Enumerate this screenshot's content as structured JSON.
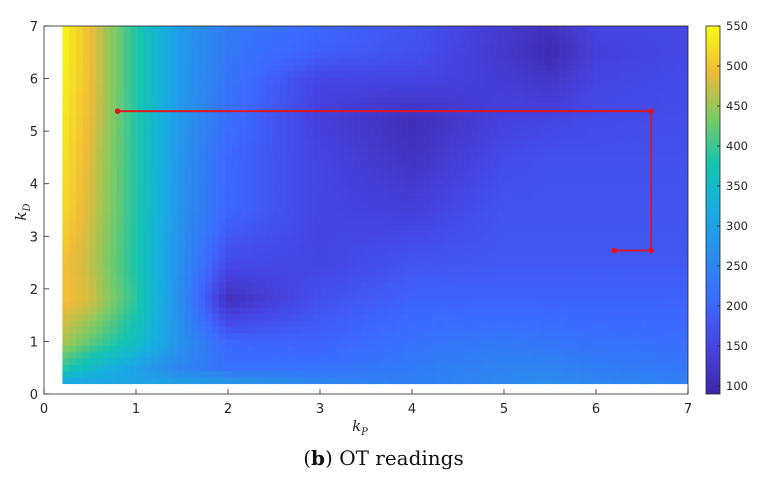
{
  "caption": {
    "label": "b",
    "text": ") OT readings"
  },
  "chart_data": {
    "type": "heatmap",
    "title": "",
    "xlabel": {
      "main": "k",
      "sub": "P"
    },
    "ylabel": {
      "main": "k",
      "sub": "D"
    },
    "xlim": [
      0,
      7
    ],
    "ylim": [
      0,
      7
    ],
    "x_ticks": [
      0,
      1,
      2,
      3,
      4,
      5,
      6,
      7
    ],
    "y_ticks": [
      0,
      1,
      2,
      3,
      4,
      5,
      6,
      7
    ],
    "grid": false,
    "colormap": "parula",
    "colorbar": {
      "range": [
        90,
        550
      ],
      "ticks": [
        100,
        150,
        200,
        250,
        300,
        350,
        400,
        450,
        500,
        550
      ]
    },
    "field": {
      "x": [
        0.2,
        0.5,
        1.0,
        1.5,
        2.0,
        3.0,
        4.0,
        5.0,
        5.5,
        6.0,
        7.0
      ],
      "y": [
        0.2,
        0.5,
        1.0,
        1.8,
        2.5,
        3.5,
        4.5,
        5.2,
        6.0,
        6.5,
        7.0
      ],
      "z": [
        [
          300,
          300,
          305,
          300,
          290,
          260,
          240,
          260,
          265,
          255,
          245
        ],
        [
          390,
          350,
          300,
          250,
          220,
          220,
          235,
          250,
          250,
          240,
          230
        ],
        [
          460,
          420,
          360,
          270,
          200,
          195,
          220,
          230,
          225,
          220,
          215
        ],
        [
          500,
          480,
          390,
          260,
          110,
          170,
          195,
          195,
          195,
          195,
          195
        ],
        [
          500,
          470,
          380,
          265,
          160,
          150,
          175,
          180,
          180,
          180,
          180
        ],
        [
          520,
          480,
          385,
          270,
          200,
          150,
          140,
          175,
          175,
          175,
          175
        ],
        [
          530,
          485,
          385,
          275,
          200,
          150,
          115,
          160,
          170,
          170,
          170
        ],
        [
          535,
          490,
          385,
          280,
          215,
          140,
          105,
          145,
          150,
          160,
          165
        ],
        [
          540,
          495,
          385,
          285,
          225,
          150,
          150,
          135,
          120,
          150,
          160
        ],
        [
          545,
          495,
          385,
          285,
          230,
          190,
          170,
          125,
          100,
          140,
          155
        ],
        [
          545,
          495,
          385,
          285,
          235,
          200,
          175,
          130,
          110,
          150,
          155
        ]
      ]
    },
    "path": {
      "color": "#e8131a",
      "points": [
        [
          0.8,
          5.38
        ],
        [
          6.6,
          5.38
        ],
        [
          6.6,
          2.73
        ],
        [
          6.2,
          2.73
        ]
      ]
    }
  }
}
